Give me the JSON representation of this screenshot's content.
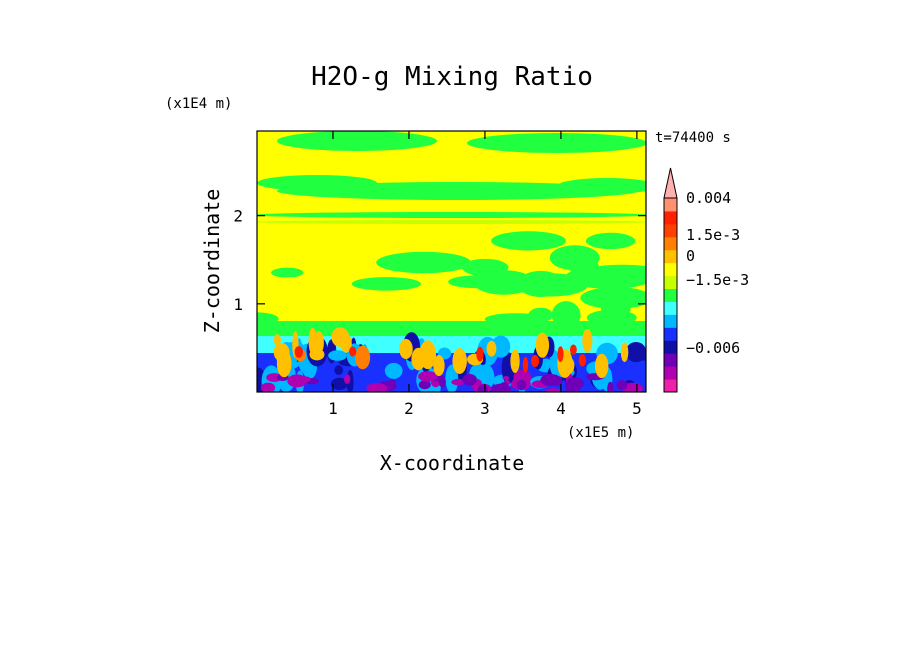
{
  "chart_data": {
    "type": "heatmap",
    "title": "H2O-g Mixing Ratio",
    "xlabel": "X-coordinate",
    "ylabel": "Z-coordinate",
    "x_unit": "(x1E5 m)",
    "y_unit": "(x1E4 m)",
    "time_label": "t=74400 s",
    "xlim": [
      0.0,
      5.12
    ],
    "ylim": [
      0.0,
      2.96
    ],
    "x_ticks": [
      "1",
      "2",
      "3",
      "4",
      "5"
    ],
    "y_ticks": [
      "1",
      "2"
    ],
    "x_tick_values": [
      1,
      2,
      3,
      4,
      5
    ],
    "y_tick_values": [
      1,
      2
    ],
    "colorbar": {
      "colors": [
        "#f020a8",
        "#b000b0",
        "#7000b8",
        "#1010a8",
        "#1a30ff",
        "#00b8ff",
        "#40ffff",
        "#20ff40",
        "#c8ff00",
        "#ffff00",
        "#ffc000",
        "#ff8000",
        "#ff4000",
        "#ff2000",
        "#ff9070",
        "#ffb0b0"
      ],
      "labels": [
        "0.004",
        "1.5e-3",
        "0",
        "−1.5e-3",
        "−0.006"
      ],
      "label_values": [
        0.004,
        0.0015,
        0.0,
        -0.0015,
        -0.006
      ],
      "extend": "max"
    },
    "field_description_levels": {
      "upper_layer": "yellow and green bands",
      "middle_layer": "yellow with green patches",
      "boundary_layer": "blue, purple and orange plumes near surface"
    }
  }
}
